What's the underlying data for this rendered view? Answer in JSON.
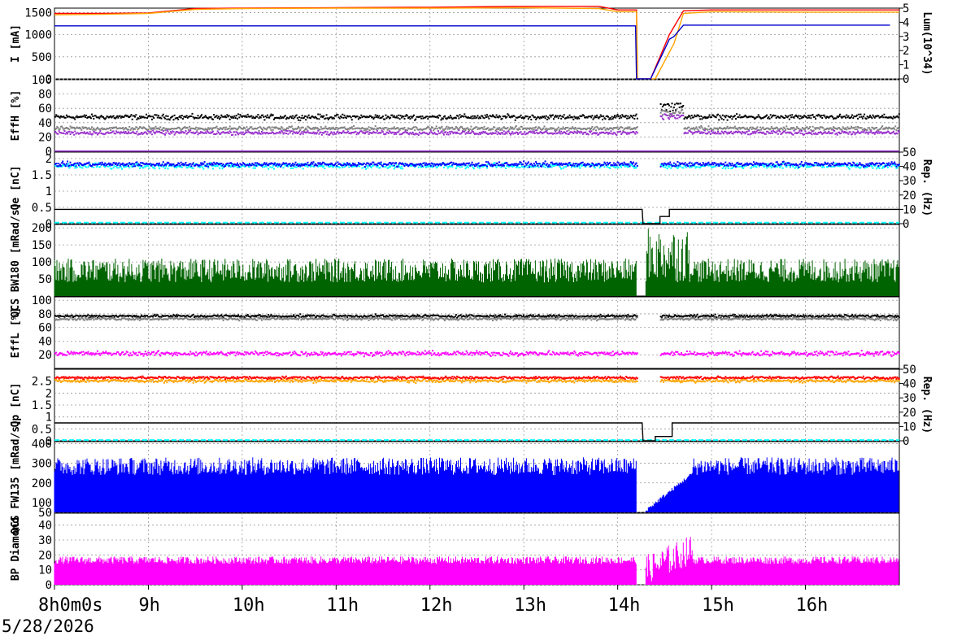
{
  "date_label": "5/28/2026",
  "time_axis": {
    "start_hour": 8,
    "end_hour": 17,
    "labels": [
      "8h0m0s",
      "9h",
      "10h",
      "11h",
      "12h",
      "13h",
      "14h",
      "15h",
      "16h"
    ]
  },
  "colors": {
    "her_current": "#ff0000",
    "ler_current": "#ffa500",
    "luminosity": "#0000cd",
    "eff_her_black": "#000000",
    "eff_her_gray": "#808080",
    "eff_her_purple": "#9932cc",
    "q_e": "#00ffff",
    "q_e_blue": "#0000ff",
    "rep_rate": "#000000",
    "qcs_bw180": "#006400",
    "eff_ler_black": "#000000",
    "eff_ler_gray": "#808080",
    "eff_ler_magenta": "#ff00ff",
    "q_p_red": "#ff0000",
    "q_p_orange": "#ffa500",
    "qcs_fw135": "#0000ff",
    "bp_diamond": "#ff00ff",
    "grid": "#999999"
  },
  "chart_data": [
    {
      "type": "line",
      "ylabel": "I [mA]",
      "y2label": "Lum(10^34)",
      "ylim": [
        0,
        1600
      ],
      "y2lim": [
        0,
        5
      ],
      "yticks": [
        "0",
        "500",
        "1000",
        "1500"
      ],
      "y2ticks": [
        "0",
        "1",
        "2",
        "3",
        "4",
        "5"
      ],
      "series": [
        {
          "key": "her_current",
          "points": [
            [
              8.0,
              1480
            ],
            [
              8.5,
              1480
            ],
            [
              9.0,
              1490
            ],
            [
              9.5,
              1590
            ],
            [
              10.0,
              1600
            ],
            [
              11.0,
              1610
            ],
            [
              12.0,
              1620
            ],
            [
              13.0,
              1640
            ],
            [
              13.8,
              1640
            ],
            [
              14.0,
              1560
            ],
            [
              14.2,
              1560
            ],
            [
              14.21,
              0
            ],
            [
              14.35,
              0
            ],
            [
              14.55,
              1000
            ],
            [
              14.7,
              1540
            ],
            [
              15.0,
              1560
            ],
            [
              16.0,
              1560
            ],
            [
              17.0,
              1560
            ]
          ]
        },
        {
          "key": "ler_current",
          "points": [
            [
              8.0,
              1450
            ],
            [
              8.5,
              1460
            ],
            [
              9.0,
              1480
            ],
            [
              9.5,
              1570
            ],
            [
              10.0,
              1590
            ],
            [
              11.0,
              1600
            ],
            [
              12.0,
              1600
            ],
            [
              13.0,
              1610
            ],
            [
              13.8,
              1590
            ],
            [
              14.0,
              1520
            ],
            [
              14.2,
              1520
            ],
            [
              14.21,
              0
            ],
            [
              14.4,
              0
            ],
            [
              14.6,
              800
            ],
            [
              14.7,
              1480
            ],
            [
              15.0,
              1520
            ],
            [
              16.0,
              1510
            ],
            [
              17.0,
              1510
            ]
          ]
        },
        {
          "key": "luminosity",
          "points": [
            [
              8.0,
              3.75
            ],
            [
              14.19,
              3.75
            ],
            [
              14.2,
              0
            ],
            [
              14.35,
              0
            ],
            [
              14.55,
              2.8
            ],
            [
              14.6,
              3.0
            ],
            [
              14.7,
              3.8
            ],
            [
              16.9,
              3.8
            ]
          ]
        }
      ]
    },
    {
      "type": "scatter",
      "ylabel": "EffH [%]",
      "ylim": [
        0,
        100
      ],
      "yticks": [
        "0",
        "20",
        "40",
        "60",
        "80",
        "100"
      ],
      "series": [
        {
          "key": "eff_her_black",
          "level": 49,
          "spread": 5,
          "gap_level": 65
        },
        {
          "key": "eff_her_gray",
          "level": 33,
          "spread": 4,
          "gap_level": 55
        },
        {
          "key": "eff_her_purple",
          "level": 27,
          "spread": 4,
          "gap_level": 50
        },
        {
          "key": "eff_her_purple_baseline",
          "level": 0
        }
      ]
    },
    {
      "type": "scatter",
      "ylabel": "Qe [nC]",
      "y2label": "Rep. (Hz)",
      "ylim": [
        0,
        2.2
      ],
      "y2lim": [
        0,
        50
      ],
      "yticks": [
        "0",
        "0.5",
        "1",
        "1.5",
        "2"
      ],
      "y2ticks": [
        "0",
        "10",
        "20",
        "30",
        "40",
        "50"
      ],
      "series": [
        {
          "key": "q_e",
          "level": 1.8,
          "spread": 0.12
        },
        {
          "key": "q_e_blue",
          "level": 1.85,
          "spread": 0.1
        },
        {
          "key": "q_e_baseline",
          "level": 0.03
        },
        {
          "key": "rep_rate",
          "points": [
            [
              8.0,
              10
            ],
            [
              14.26,
              10
            ],
            [
              14.27,
              0
            ],
            [
              14.45,
              0
            ],
            [
              14.45,
              5
            ],
            [
              14.55,
              5
            ],
            [
              14.55,
              10
            ],
            [
              17.0,
              10
            ]
          ]
        }
      ]
    },
    {
      "type": "bar",
      "ylabel": "QCS BW180 [mRad/s]",
      "ylim": [
        0,
        210
      ],
      "yticks": [
        "50",
        "100",
        "150",
        "200"
      ],
      "series": [
        {
          "key": "qcs_bw180",
          "base": 40,
          "peak": 110,
          "spike_peak": 200
        }
      ]
    },
    {
      "type": "scatter",
      "ylabel": "EffL [%]",
      "ylim": [
        0,
        105
      ],
      "yticks": [
        "20",
        "40",
        "60",
        "80",
        "100"
      ],
      "series": [
        {
          "key": "eff_ler_black",
          "level": 78,
          "spread": 3
        },
        {
          "key": "eff_ler_gray",
          "level": 74,
          "spread": 3
        },
        {
          "key": "eff_ler_magenta",
          "level": 23,
          "spread": 5
        }
      ]
    },
    {
      "type": "scatter",
      "ylabel": "Qp [nC]",
      "y2label": "Rep. (Hz)",
      "ylim": [
        0,
        3.0
      ],
      "y2lim": [
        0,
        50
      ],
      "yticks": [
        "0",
        "0.5",
        "1",
        "1.5",
        "2",
        "2.5"
      ],
      "y2ticks": [
        "0",
        "10",
        "20",
        "30",
        "40",
        "50"
      ],
      "series": [
        {
          "key": "q_p_orange",
          "level": 2.55,
          "spread": 0.1
        },
        {
          "key": "q_p_red",
          "level": 2.68,
          "spread": 0.08
        },
        {
          "key": "q_p_baseline",
          "level": 0.03
        },
        {
          "key": "rep_rate",
          "points": [
            [
              8.0,
              12.5
            ],
            [
              14.26,
              12.5
            ],
            [
              14.27,
              0
            ],
            [
              14.4,
              0
            ],
            [
              14.4,
              3
            ],
            [
              14.58,
              3
            ],
            [
              14.58,
              12.5
            ],
            [
              17.0,
              12.5
            ]
          ]
        }
      ]
    },
    {
      "type": "bar",
      "ylabel": "QCS FW135 [mRad/s]",
      "ylim": [
        50,
        410
      ],
      "yticks": [
        "50",
        "100",
        "200",
        "300",
        "400"
      ],
      "series": [
        {
          "key": "qcs_fw135",
          "base": 240,
          "peak": 330
        }
      ]
    },
    {
      "type": "bar",
      "ylabel": "BP Diamond",
      "ylim": [
        0,
        48
      ],
      "yticks": [
        "0",
        "10",
        "20",
        "30",
        "40"
      ],
      "series": [
        {
          "key": "bp_diamond",
          "base": 14,
          "peak": 19
        }
      ]
    }
  ]
}
